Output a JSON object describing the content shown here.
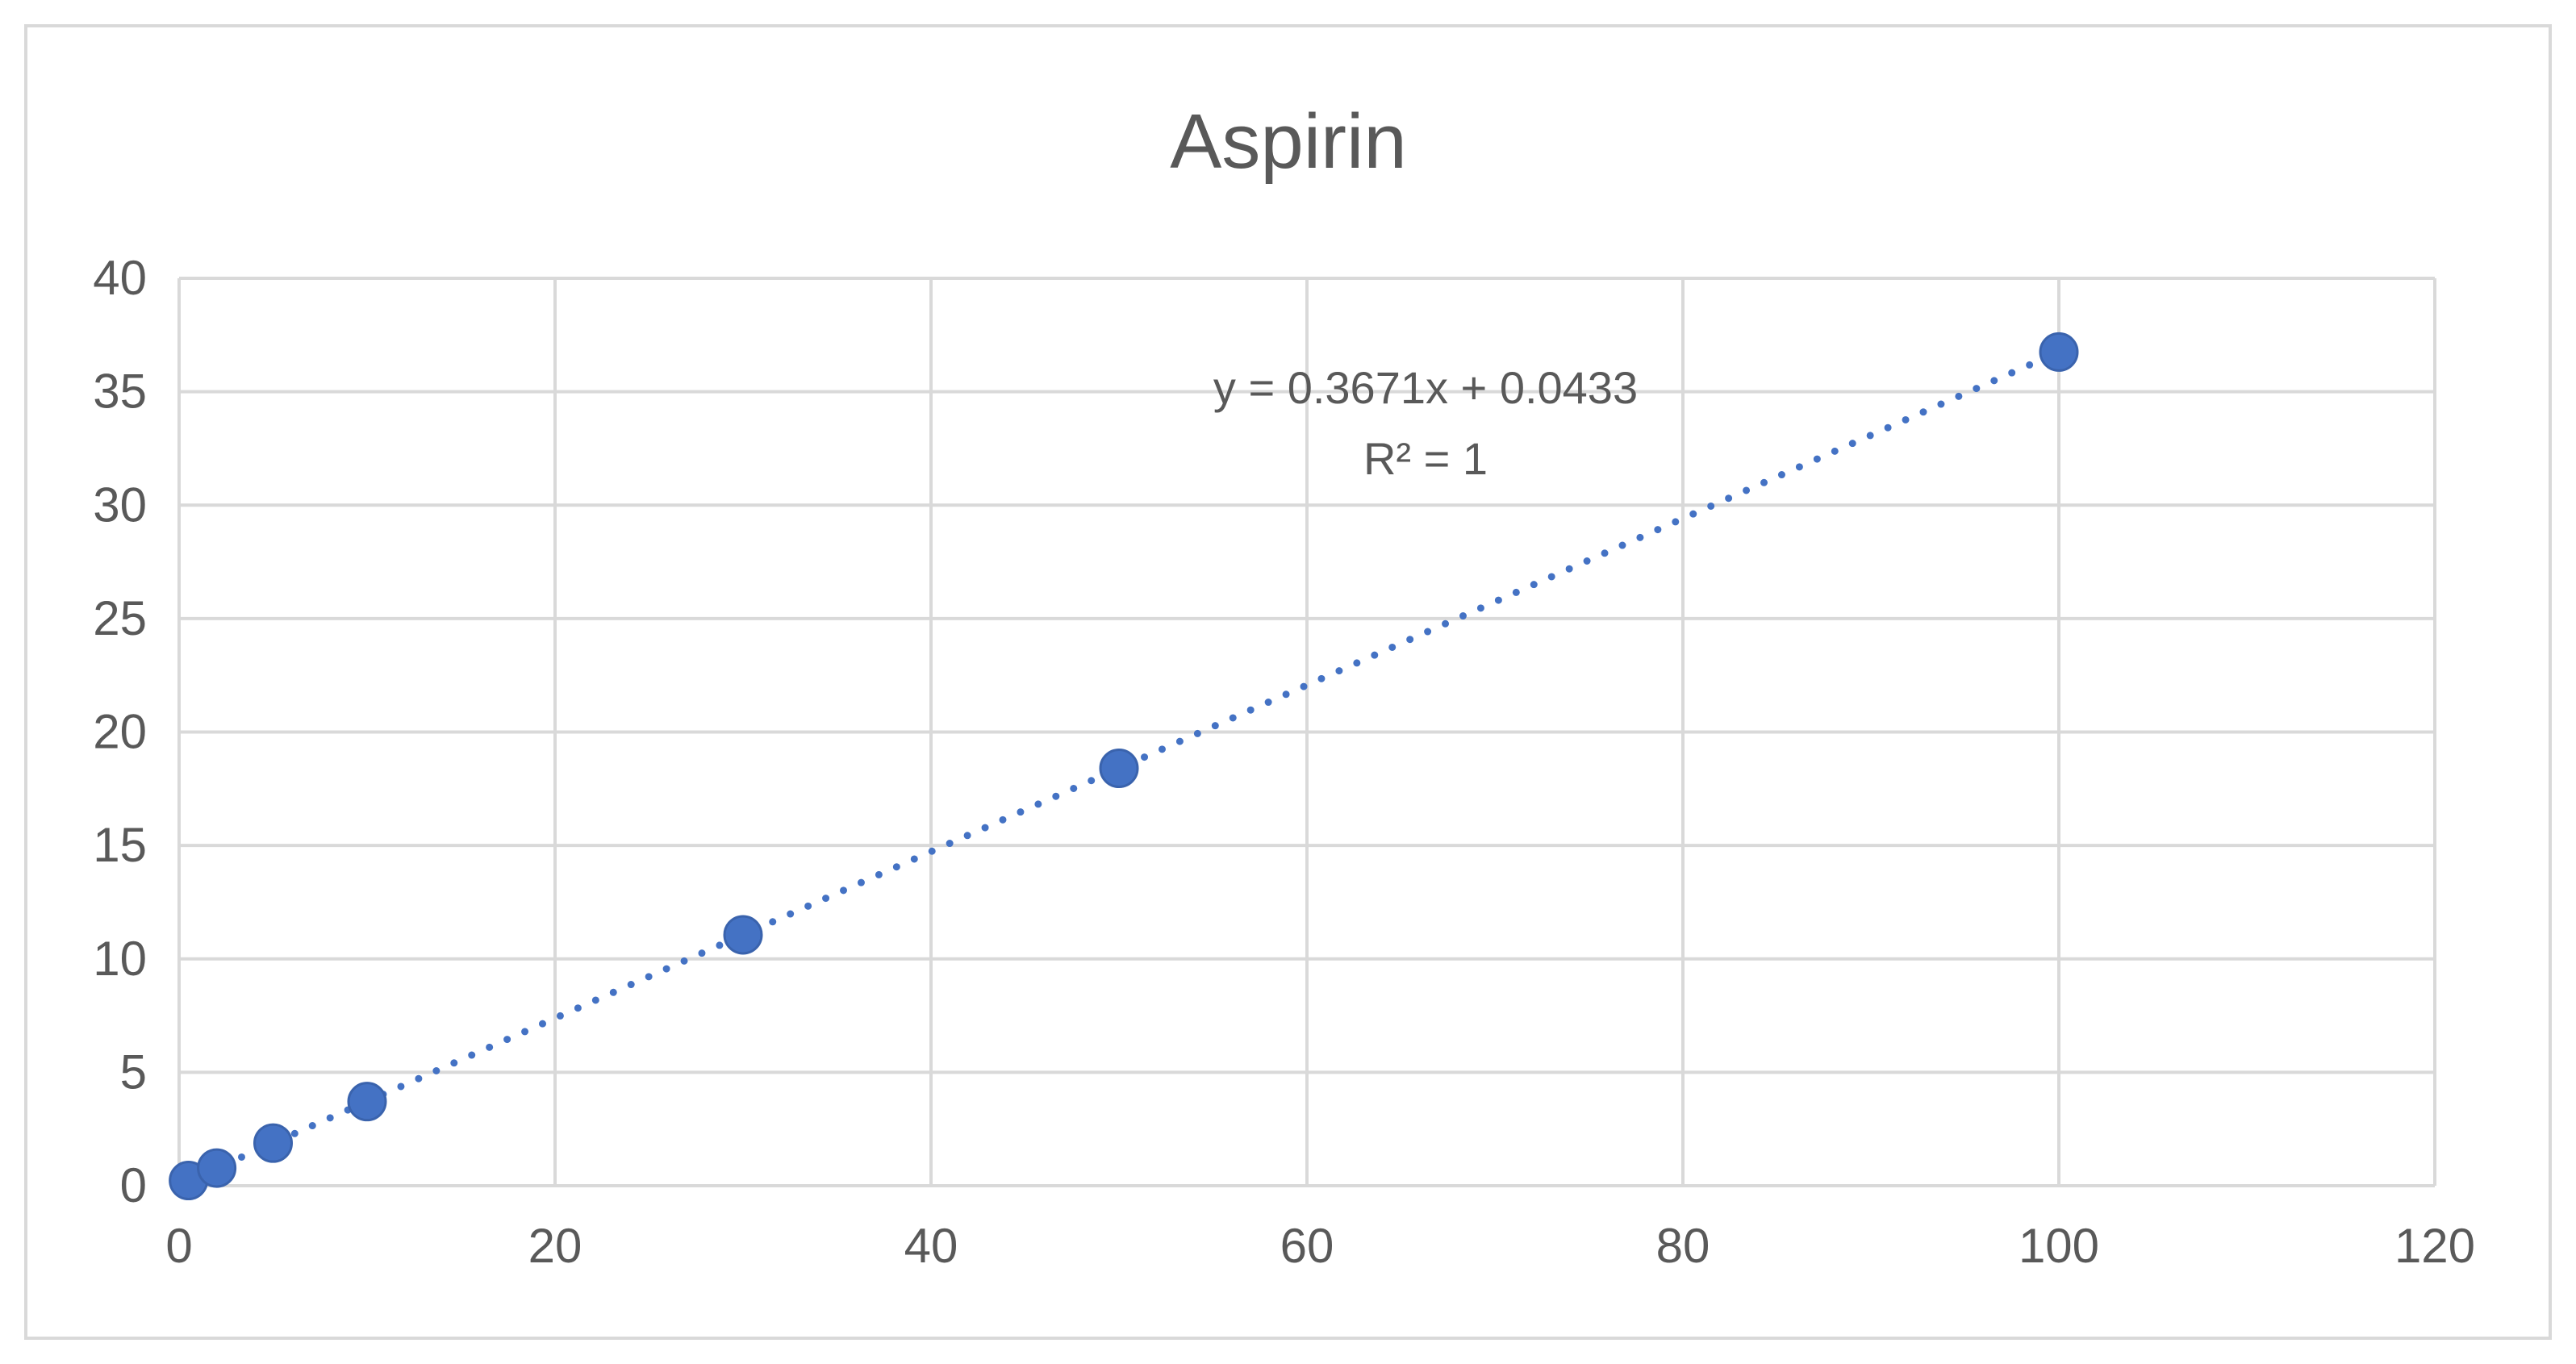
{
  "chart_data": {
    "type": "scatter",
    "title": "Aspirin",
    "xlabel": "",
    "ylabel": "",
    "xlim": [
      0,
      120
    ],
    "ylim": [
      0,
      40
    ],
    "x_ticks": [
      0,
      20,
      40,
      60,
      80,
      100,
      120
    ],
    "y_ticks": [
      0,
      5,
      10,
      15,
      20,
      25,
      30,
      35,
      40
    ],
    "grid": true,
    "legend": "none",
    "series": [
      {
        "x": [
          0.5,
          2,
          5,
          10,
          30,
          50,
          100
        ],
        "y": [
          0.23,
          0.78,
          1.88,
          3.71,
          11.06,
          18.4,
          36.75
        ],
        "color": "#4472c4",
        "marker": "circle"
      }
    ],
    "trendline": {
      "type": "linear",
      "slope": 0.3671,
      "intercept": 0.0433,
      "style": "dotted",
      "color": "#4472c4",
      "equation_label": "y = 0.3671x + 0.0433",
      "r2_label": "R² = 1"
    }
  }
}
